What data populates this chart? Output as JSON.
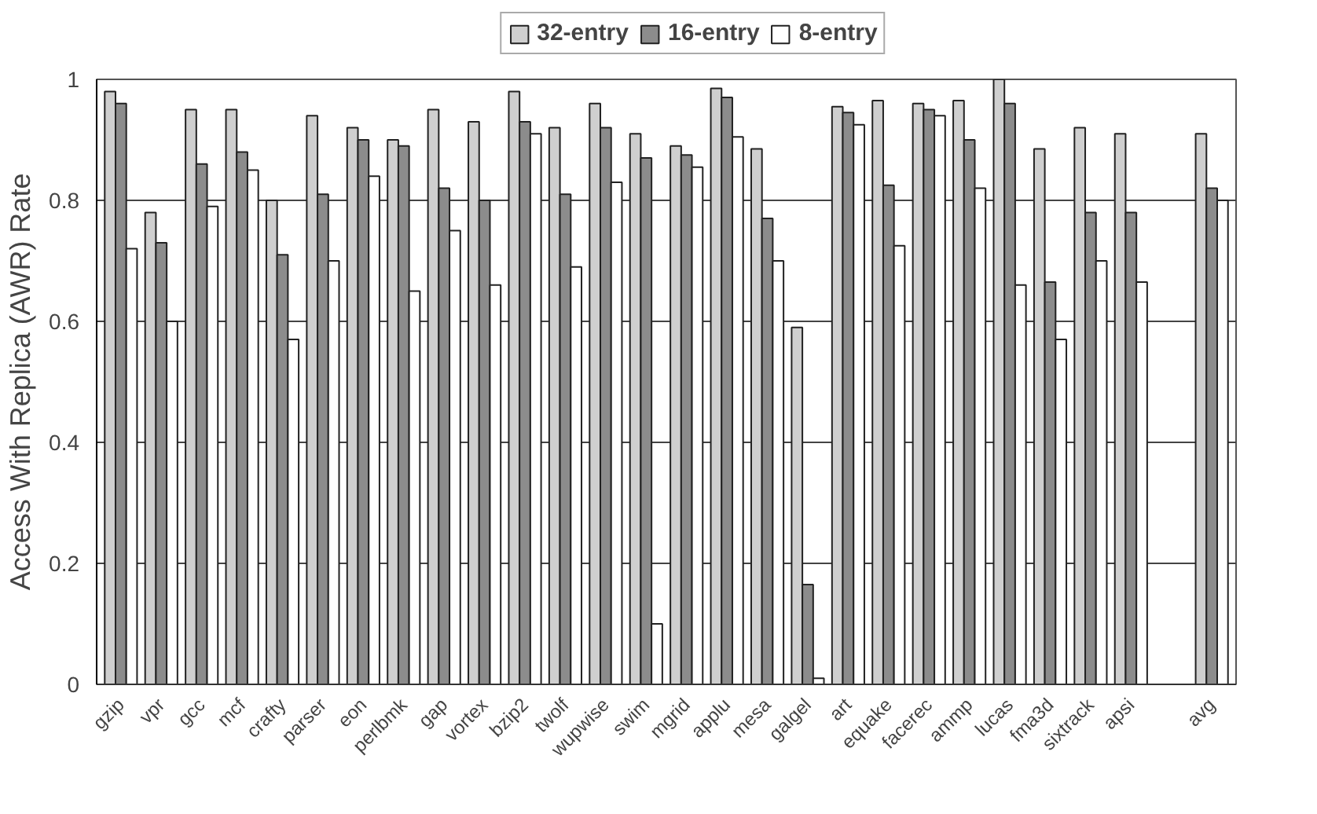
{
  "chart_data": {
    "type": "bar",
    "ylabel": "Access With Replica (AWR) Rate",
    "categories": [
      "gzip",
      "vpr",
      "gcc",
      "mcf",
      "crafty",
      "parser",
      "eon",
      "perlbmk",
      "gap",
      "vortex",
      "bzip2",
      "twolf",
      "wupwise",
      "swim",
      "mgrid",
      "applu",
      "mesa",
      "galgel",
      "art",
      "equake",
      "facerec",
      "ammp",
      "lucas",
      "fma3d",
      "sixtrack",
      "apsi",
      null,
      "avg"
    ],
    "series": [
      {
        "name": "32-entry",
        "color": "#cfcfcf",
        "values": [
          0.98,
          0.78,
          0.95,
          0.95,
          0.8,
          0.94,
          0.92,
          0.9,
          0.95,
          0.93,
          0.98,
          0.92,
          0.96,
          0.91,
          0.89,
          0.985,
          0.885,
          0.59,
          0.955,
          0.965,
          0.96,
          0.965,
          1.0,
          0.885,
          0.92,
          0.91,
          null,
          0.91
        ]
      },
      {
        "name": "16-entry",
        "color": "#8c8c8c",
        "values": [
          0.96,
          0.73,
          0.86,
          0.88,
          0.71,
          0.81,
          0.9,
          0.89,
          0.82,
          0.8,
          0.93,
          0.81,
          0.92,
          0.87,
          0.875,
          0.97,
          0.77,
          0.165,
          0.945,
          0.825,
          0.95,
          0.9,
          0.96,
          0.665,
          0.78,
          0.78,
          null,
          0.82
        ]
      },
      {
        "name": "8-entry",
        "color": "#ffffff",
        "values": [
          0.72,
          0.6,
          0.79,
          0.85,
          0.57,
          0.7,
          0.84,
          0.65,
          0.75,
          0.66,
          0.91,
          0.69,
          0.83,
          0.1,
          0.855,
          0.905,
          0.7,
          0.01,
          0.925,
          0.725,
          0.94,
          0.82,
          0.66,
          0.57,
          0.7,
          0.665,
          null,
          0.8
        ]
      }
    ],
    "ylim": [
      0,
      1
    ],
    "yticks": [
      0,
      0.2,
      0.4,
      0.6,
      0.8,
      1
    ],
    "grid": "y",
    "legend": "top"
  }
}
